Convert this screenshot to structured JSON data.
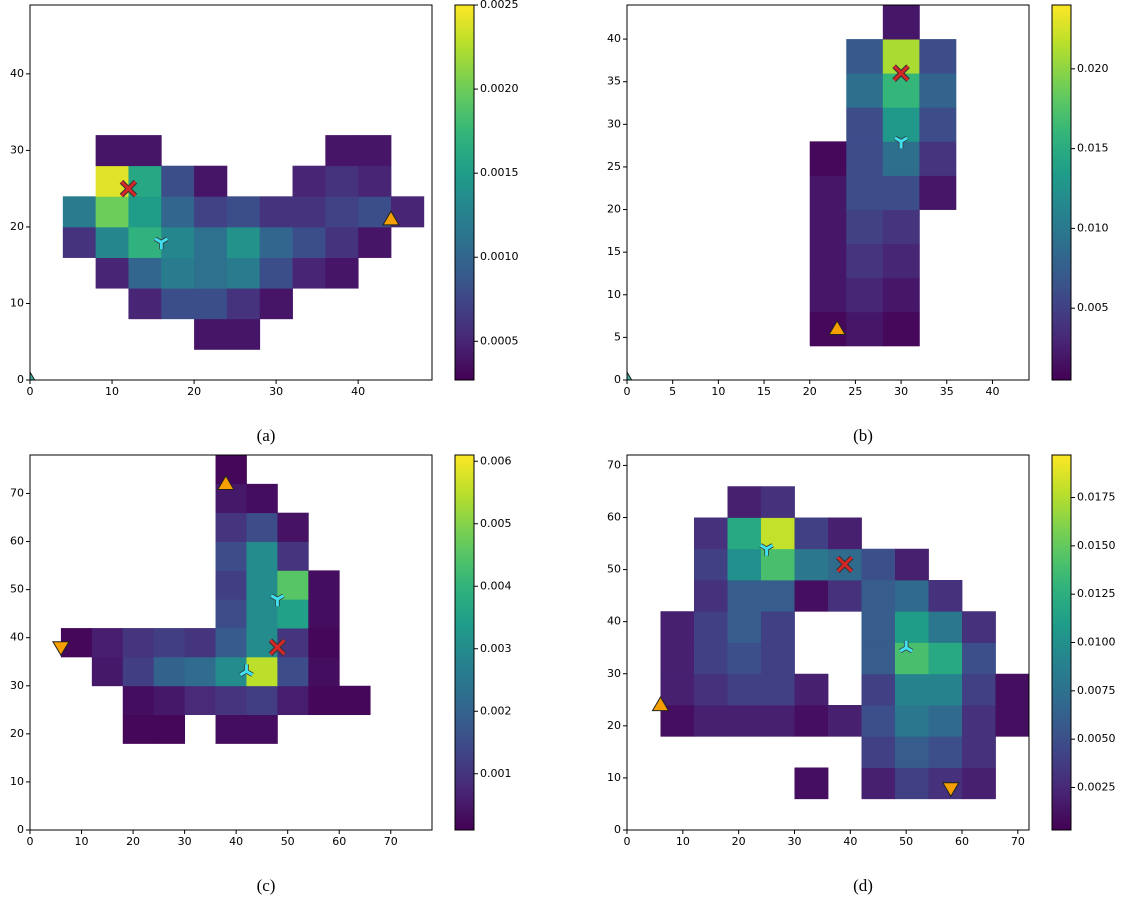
{
  "chart_data": [
    {
      "type": "heatmap",
      "caption": "(a)",
      "xlim": [
        0,
        49
      ],
      "ylim": [
        0,
        49
      ],
      "xticks": [
        0,
        10,
        20,
        30,
        40
      ],
      "yticks": [
        0,
        10,
        20,
        30,
        40
      ],
      "xbins": [
        0,
        4,
        8,
        12,
        16,
        20,
        24,
        28,
        32,
        36,
        40,
        44,
        48
      ],
      "ybins": [
        0,
        4,
        8,
        12,
        16,
        20,
        24,
        28,
        32,
        36,
        40,
        44,
        48
      ],
      "z": [
        [
          null,
          null,
          null,
          null,
          null,
          null,
          null,
          null,
          null,
          null,
          null,
          null
        ],
        [
          null,
          null,
          null,
          null,
          null,
          0.0004,
          0.0004,
          null,
          null,
          null,
          null,
          null
        ],
        [
          null,
          null,
          null,
          0.0005,
          0.0008,
          0.0008,
          0.0006,
          0.0004,
          null,
          null,
          null,
          null
        ],
        [
          null,
          null,
          0.0005,
          0.001,
          0.0012,
          0.0011,
          0.0012,
          0.0008,
          0.0005,
          0.0004,
          null,
          null
        ],
        [
          null,
          0.0006,
          0.0013,
          0.0017,
          0.0013,
          0.0011,
          0.0014,
          0.001,
          0.0008,
          0.0006,
          0.0004,
          null
        ],
        [
          null,
          0.0012,
          0.002,
          0.0015,
          0.001,
          0.0007,
          0.0008,
          0.0006,
          0.0006,
          0.0007,
          0.0008,
          0.0005
        ],
        [
          null,
          null,
          0.0024,
          0.0016,
          0.0008,
          0.0004,
          null,
          null,
          0.0005,
          0.0006,
          0.0005,
          null
        ],
        [
          null,
          null,
          0.0004,
          0.0004,
          null,
          null,
          null,
          null,
          null,
          0.0004,
          0.0004,
          null
        ],
        [
          null,
          null,
          null,
          null,
          null,
          null,
          null,
          null,
          null,
          null,
          null,
          null
        ],
        [
          null,
          null,
          null,
          null,
          null,
          null,
          null,
          null,
          null,
          null,
          null,
          null
        ],
        [
          null,
          null,
          null,
          null,
          null,
          null,
          null,
          null,
          null,
          null,
          null,
          null
        ],
        [
          null,
          null,
          null,
          null,
          null,
          null,
          null,
          null,
          null,
          null,
          null,
          null
        ]
      ],
      "clim": [
        0.00027,
        0.0025
      ],
      "cticks": [
        {
          "value": 0.0005,
          "label": "0.0005"
        },
        {
          "value": 0.001,
          "label": "0.0010"
        },
        {
          "value": 0.0015,
          "label": "0.0015"
        },
        {
          "value": 0.002,
          "label": "0.0020"
        },
        {
          "value": 0.0025,
          "label": "0.0025"
        }
      ],
      "markers": [
        {
          "x": 12,
          "y": 25,
          "symbol": "x",
          "color": "#d62728"
        },
        {
          "x": 16,
          "y": 18,
          "symbol": "tri",
          "color": "#40e0f0"
        },
        {
          "x": 44,
          "y": 21,
          "symbol": "^",
          "color": "#f5a000"
        },
        {
          "x": 0,
          "y": 0,
          "symbol": "^",
          "color": "#40b0a0"
        }
      ]
    },
    {
      "type": "heatmap",
      "caption": "(b)",
      "xlim": [
        0,
        44
      ],
      "ylim": [
        0,
        44
      ],
      "xticks": [
        0,
        5,
        10,
        15,
        20,
        25,
        30,
        35,
        40
      ],
      "yticks": [
        0,
        5,
        10,
        15,
        20,
        25,
        30,
        35,
        40
      ],
      "xbins": [
        0,
        4,
        8,
        12,
        16,
        20,
        24,
        28,
        32,
        36,
        40,
        44
      ],
      "ybins": [
        0,
        4,
        8,
        12,
        16,
        20,
        24,
        28,
        32,
        36,
        40,
        44
      ],
      "z": [
        [
          null,
          null,
          null,
          null,
          null,
          null,
          null,
          null,
          null,
          null,
          null
        ],
        [
          null,
          null,
          null,
          null,
          null,
          0.001,
          0.002,
          0.001,
          null,
          null,
          null
        ],
        [
          null,
          null,
          null,
          null,
          null,
          0.002,
          0.003,
          0.002,
          null,
          null,
          null
        ],
        [
          null,
          null,
          null,
          null,
          null,
          0.002,
          0.004,
          0.003,
          null,
          null,
          null
        ],
        [
          null,
          null,
          null,
          null,
          null,
          0.002,
          0.005,
          0.004,
          null,
          null,
          null
        ],
        [
          null,
          null,
          null,
          null,
          null,
          0.002,
          0.006,
          0.006,
          0.002,
          null,
          null
        ],
        [
          null,
          null,
          null,
          null,
          null,
          0.001,
          0.006,
          0.009,
          0.004,
          null,
          null
        ],
        [
          null,
          null,
          null,
          null,
          null,
          null,
          0.006,
          0.013,
          0.006,
          null,
          null
        ],
        [
          null,
          null,
          null,
          null,
          null,
          null,
          0.009,
          0.016,
          0.008,
          null,
          null
        ],
        [
          null,
          null,
          null,
          null,
          null,
          null,
          0.007,
          0.021,
          0.006,
          null,
          null
        ],
        [
          null,
          null,
          null,
          null,
          null,
          null,
          null,
          0.002,
          null,
          null,
          null
        ]
      ],
      "clim": [
        0.0005,
        0.024
      ],
      "cticks": [
        {
          "value": 0.005,
          "label": "0.005"
        },
        {
          "value": 0.01,
          "label": "0.010"
        },
        {
          "value": 0.015,
          "label": "0.015"
        },
        {
          "value": 0.02,
          "label": "0.020"
        }
      ],
      "markers": [
        {
          "x": 30,
          "y": 36,
          "symbol": "x",
          "color": "#d62728"
        },
        {
          "x": 30,
          "y": 28,
          "symbol": "tri",
          "color": "#40e0f0"
        },
        {
          "x": 23,
          "y": 6,
          "symbol": "^",
          "color": "#f5a000"
        },
        {
          "x": 0,
          "y": 0,
          "symbol": "^",
          "color": "#40b0a0"
        }
      ]
    },
    {
      "type": "heatmap",
      "caption": "(c)",
      "xlim": [
        0,
        78
      ],
      "ylim": [
        0,
        78
      ],
      "xticks": [
        0,
        10,
        20,
        30,
        40,
        50,
        60,
        70
      ],
      "yticks": [
        0,
        10,
        20,
        30,
        40,
        50,
        60,
        70
      ],
      "xbins": [
        0,
        6,
        12,
        18,
        24,
        30,
        36,
        42,
        48,
        54,
        60,
        66,
        72,
        78
      ],
      "ybins": [
        0,
        6,
        12,
        18,
        24,
        30,
        36,
        42,
        48,
        54,
        60,
        66,
        72,
        78
      ],
      "z": [
        [
          null,
          null,
          null,
          null,
          null,
          null,
          null,
          null,
          null,
          null,
          null,
          null,
          null
        ],
        [
          null,
          null,
          null,
          null,
          null,
          null,
          null,
          null,
          null,
          null,
          null,
          null,
          null
        ],
        [
          null,
          null,
          null,
          null,
          null,
          null,
          null,
          null,
          null,
          null,
          null,
          null,
          null
        ],
        [
          null,
          null,
          null,
          0.0002,
          0.0002,
          null,
          0.0003,
          0.0003,
          null,
          null,
          null,
          null,
          null
        ],
        [
          null,
          null,
          null,
          0.0003,
          0.0005,
          0.0008,
          0.001,
          0.0012,
          0.0006,
          0.0002,
          0.0002,
          null,
          null
        ],
        [
          null,
          null,
          0.0005,
          0.0012,
          0.002,
          0.0022,
          0.003,
          0.0055,
          0.0015,
          0.0003,
          null,
          null,
          null
        ],
        [
          null,
          0.0002,
          0.0006,
          0.001,
          0.0012,
          0.001,
          0.0018,
          0.003,
          0.001,
          0.0002,
          null,
          null,
          null
        ],
        [
          null,
          null,
          null,
          null,
          null,
          null,
          0.0015,
          0.003,
          0.0035,
          0.0003,
          null,
          null,
          null
        ],
        [
          null,
          null,
          null,
          null,
          null,
          null,
          0.0012,
          0.003,
          0.0045,
          0.0003,
          null,
          null,
          null
        ],
        [
          null,
          null,
          null,
          null,
          null,
          null,
          0.0015,
          0.003,
          0.001,
          null,
          null,
          null,
          null
        ],
        [
          null,
          null,
          null,
          null,
          null,
          null,
          0.001,
          0.0015,
          0.0004,
          null,
          null,
          null,
          null
        ],
        [
          null,
          null,
          null,
          null,
          null,
          null,
          0.0005,
          0.0003,
          null,
          null,
          null,
          null,
          null
        ],
        [
          null,
          null,
          null,
          null,
          null,
          null,
          0.0002,
          null,
          null,
          null,
          null,
          null,
          null
        ]
      ],
      "clim": [
        0.0001,
        0.0061
      ],
      "cticks": [
        0.001,
        0.002,
        0.003,
        0.004,
        0.005,
        0.006
      ],
      "markers": [
        {
          "x": 48,
          "y": 38,
          "symbol": "x",
          "color": "#d62728"
        },
        {
          "x": 48,
          "y": 48,
          "symbol": "tri",
          "color": "#40e0f0"
        },
        {
          "x": 42,
          "y": 33,
          "symbol": "tri-down",
          "color": "#40e0f0"
        },
        {
          "x": 38,
          "y": 72,
          "symbol": "^",
          "color": "#f5a000"
        },
        {
          "x": 6,
          "y": 38,
          "symbol": "v",
          "color": "#f5a000"
        }
      ]
    },
    {
      "type": "heatmap",
      "caption": "(d)",
      "xlim": [
        0,
        72
      ],
      "ylim": [
        0,
        72
      ],
      "xticks": [
        0,
        10,
        20,
        30,
        40,
        50,
        60,
        70
      ],
      "yticks": [
        0,
        10,
        20,
        30,
        40,
        50,
        60,
        70
      ],
      "xbins": [
        0,
        6,
        12,
        18,
        24,
        30,
        36,
        42,
        48,
        54,
        60,
        66,
        72
      ],
      "ybins": [
        0,
        6,
        12,
        18,
        24,
        30,
        36,
        42,
        48,
        54,
        60,
        66,
        72
      ],
      "z": [
        [
          null,
          null,
          null,
          null,
          null,
          null,
          null,
          null,
          null,
          null,
          null,
          null
        ],
        [
          null,
          null,
          null,
          null,
          null,
          0.001,
          null,
          0.002,
          0.004,
          0.003,
          0.002,
          null
        ],
        [
          null,
          null,
          null,
          null,
          null,
          null,
          null,
          0.004,
          0.006,
          0.005,
          0.003,
          null
        ],
        [
          null,
          0.001,
          0.002,
          0.002,
          0.002,
          0.001,
          0.002,
          0.005,
          0.008,
          0.007,
          0.003,
          0.001
        ],
        [
          null,
          0.002,
          0.003,
          0.004,
          0.004,
          0.002,
          null,
          0.004,
          0.009,
          0.009,
          0.004,
          0.001
        ],
        [
          null,
          0.002,
          0.004,
          0.005,
          0.004,
          null,
          null,
          0.006,
          0.014,
          0.012,
          0.005,
          null
        ],
        [
          null,
          0.002,
          0.004,
          0.006,
          0.004,
          null,
          null,
          0.006,
          0.011,
          0.008,
          0.003,
          null
        ],
        [
          null,
          null,
          0.003,
          0.006,
          0.006,
          0.001,
          0.003,
          0.006,
          0.007,
          0.003,
          null,
          null
        ],
        [
          null,
          null,
          0.004,
          0.01,
          0.014,
          0.008,
          0.007,
          0.005,
          0.002,
          null,
          null,
          null
        ],
        [
          null,
          null,
          0.003,
          0.012,
          0.018,
          0.004,
          0.002,
          null,
          null,
          null,
          null,
          null
        ],
        [
          null,
          null,
          null,
          0.002,
          0.003,
          null,
          null,
          null,
          null,
          null,
          null,
          null
        ],
        [
          null,
          null,
          null,
          null,
          null,
          null,
          null,
          null,
          null,
          null,
          null,
          null
        ]
      ],
      "clim": [
        0.0003,
        0.0197
      ],
      "cticks": [
        {
          "value": 0.0025,
          "label": "0.0025"
        },
        {
          "value": 0.005,
          "label": "0.0050"
        },
        {
          "value": 0.0075,
          "label": "0.0075"
        },
        {
          "value": 0.01,
          "label": "0.0100"
        },
        {
          "value": 0.0125,
          "label": "0.0125"
        },
        {
          "value": 0.015,
          "label": "0.0150"
        },
        {
          "value": 0.0175,
          "label": "0.0175"
        }
      ],
      "markers": [
        {
          "x": 39,
          "y": 51,
          "symbol": "x",
          "color": "#d62728"
        },
        {
          "x": 25,
          "y": 54,
          "symbol": "tri",
          "color": "#40e0f0"
        },
        {
          "x": 50,
          "y": 35,
          "symbol": "tri-down",
          "color": "#40e0f0"
        },
        {
          "x": 6,
          "y": 24,
          "symbol": "^",
          "color": "#f5a000"
        },
        {
          "x": 58,
          "y": 8,
          "symbol": "v",
          "color": "#f5a000"
        }
      ]
    }
  ]
}
